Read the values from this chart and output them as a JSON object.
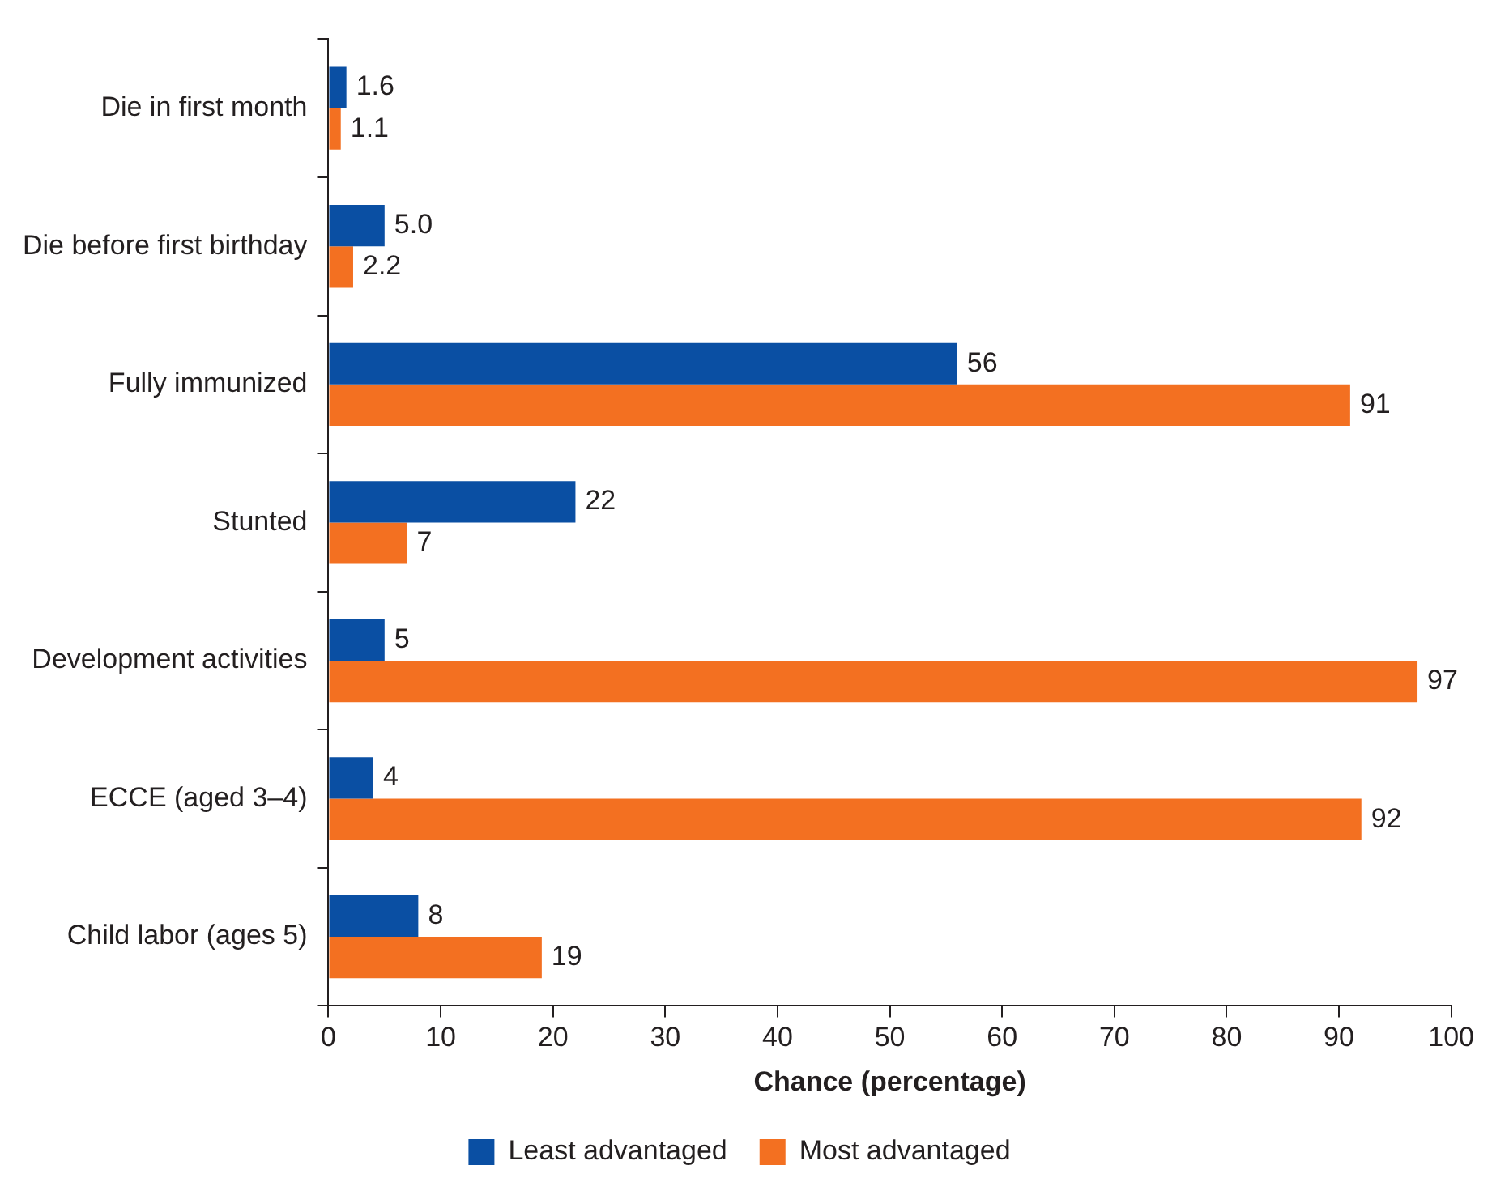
{
  "chart_data": {
    "type": "bar",
    "orientation": "horizontal",
    "xlabel": "Chance (percentage)",
    "categories": [
      "Die in first month",
      "Die before first birthday",
      "Fully immunized",
      "Stunted",
      "Development activities",
      "ECCE (aged 3–4)",
      "Child labor (ages 5)"
    ],
    "series": [
      {
        "name": "Least advantaged",
        "color": "#0a4fa3",
        "values": [
          1.6,
          5.0,
          56,
          22,
          5,
          4,
          8
        ],
        "value_labels": [
          "1.6",
          "5.0",
          "56",
          "22",
          "5",
          "4",
          "8"
        ]
      },
      {
        "name": "Most advantaged",
        "color": "#f37021",
        "values": [
          1.1,
          2.2,
          91,
          7,
          97,
          92,
          19
        ],
        "value_labels": [
          "1.1",
          "2.2",
          "91",
          "7",
          "97",
          "92",
          "19"
        ]
      }
    ],
    "xlim": [
      0,
      100
    ],
    "xticks": [
      0,
      10,
      20,
      30,
      40,
      50,
      60,
      70,
      80,
      90,
      100
    ],
    "grid": false,
    "legend": "bottom"
  }
}
